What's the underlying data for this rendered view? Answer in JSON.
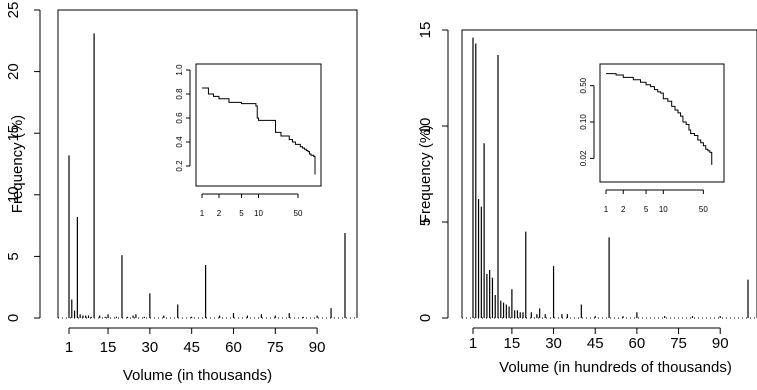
{
  "chart_data": [
    {
      "type": "bar",
      "xlabel": "Volume (in thousands)",
      "ylabel": "Frequency (%)",
      "xlim": [
        1,
        100
      ],
      "ylim": [
        0,
        25
      ],
      "xticks": [
        "1",
        "15",
        "30",
        "45",
        "60",
        "75",
        "90"
      ],
      "yticks": [
        "0",
        "5",
        "10",
        "15",
        "20",
        "25"
      ],
      "x": [
        1,
        2,
        3,
        4,
        5,
        6,
        7,
        8,
        9,
        10,
        12,
        14,
        15,
        18,
        20,
        22,
        24,
        25,
        28,
        30,
        35,
        40,
        45,
        50,
        55,
        60,
        65,
        70,
        75,
        80,
        85,
        90,
        95,
        100
      ],
      "values": [
        13.2,
        1.5,
        0.6,
        8.2,
        0.3,
        0.2,
        0.2,
        0.2,
        0.1,
        23.1,
        0.2,
        0.1,
        0.3,
        0.1,
        5.1,
        0.1,
        0.2,
        0.3,
        0.1,
        2.0,
        0.2,
        1.1,
        0.1,
        4.3,
        0.2,
        0.4,
        0.2,
        0.3,
        0.2,
        0.4,
        0.1,
        0.2,
        0.8,
        6.9
      ],
      "inset": {
        "type": "line",
        "xscale": "log",
        "xticks": [
          "1",
          "2",
          "5",
          "10",
          "50"
        ],
        "yticks": [
          "0.2",
          "0.4",
          "0.6",
          "0.8",
          "1.0"
        ],
        "x": [
          1,
          1.3,
          1.6,
          2,
          3,
          5,
          7,
          9,
          9.5,
          10,
          15,
          20,
          25,
          30,
          35,
          40,
          45,
          50,
          55,
          60,
          65,
          70,
          75,
          80,
          85,
          90,
          95,
          100
        ],
        "y": [
          0.85,
          0.8,
          0.78,
          0.76,
          0.73,
          0.72,
          0.72,
          0.7,
          0.6,
          0.58,
          0.58,
          0.48,
          0.45,
          0.45,
          0.42,
          0.4,
          0.38,
          0.38,
          0.36,
          0.35,
          0.34,
          0.33,
          0.32,
          0.3,
          0.29,
          0.29,
          0.28,
          0.13
        ]
      }
    },
    {
      "type": "bar",
      "xlabel": "Volume (in hundreds of thousands)",
      "ylabel": "Frequency (%)",
      "xlim": [
        1,
        100
      ],
      "ylim": [
        0,
        15
      ],
      "xticks": [
        "1",
        "15",
        "30",
        "45",
        "60",
        "75",
        "90"
      ],
      "yticks": [
        "0",
        "5",
        "10",
        "15"
      ],
      "x": [
        1,
        2,
        3,
        4,
        5,
        6,
        7,
        8,
        9,
        10,
        11,
        12,
        13,
        14,
        15,
        16,
        17,
        18,
        19,
        20,
        22,
        24,
        25,
        27,
        30,
        33,
        35,
        40,
        45,
        50,
        55,
        60,
        70,
        80,
        90,
        100
      ],
      "values": [
        14.6,
        14.3,
        6.2,
        5.8,
        9.1,
        2.3,
        2.5,
        2.1,
        1.2,
        13.7,
        0.9,
        0.8,
        0.7,
        0.6,
        1.5,
        0.4,
        0.4,
        0.3,
        0.3,
        4.5,
        0.3,
        0.2,
        0.5,
        0.2,
        2.7,
        0.2,
        0.2,
        0.7,
        0.1,
        4.2,
        0.1,
        0.3,
        0.1,
        0.1,
        0.1,
        2.0
      ],
      "inset": {
        "type": "line",
        "xscale": "log",
        "yscale": "log",
        "xticks": [
          "1",
          "2",
          "5",
          "10",
          "50"
        ],
        "yticks": [
          "0.02",
          "0.10",
          "0.50"
        ],
        "x": [
          1,
          1.5,
          2,
          3,
          4,
          5,
          6,
          7,
          8,
          9,
          10,
          12,
          14,
          16,
          18,
          20,
          22,
          25,
          28,
          30,
          35,
          40,
          45,
          50,
          55,
          60,
          65,
          70
        ],
        "y": [
          0.85,
          0.8,
          0.72,
          0.65,
          0.58,
          0.52,
          0.48,
          0.42,
          0.38,
          0.36,
          0.28,
          0.25,
          0.2,
          0.17,
          0.15,
          0.13,
          0.1,
          0.09,
          0.07,
          0.06,
          0.055,
          0.045,
          0.04,
          0.035,
          0.03,
          0.028,
          0.026,
          0.015
        ]
      }
    }
  ]
}
